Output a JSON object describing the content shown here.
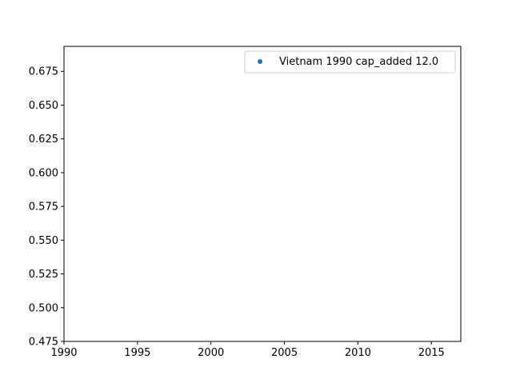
{
  "chart_data": {
    "type": "scatter",
    "title": "",
    "xlabel": "",
    "ylabel": "",
    "xlim": [
      1990,
      2017
    ],
    "ylim": [
      0.475,
      0.6935
    ],
    "x_ticks": [
      1990,
      1995,
      2000,
      2005,
      2010,
      2015
    ],
    "x_tick_labels": [
      "1990",
      "1995",
      "2000",
      "2005",
      "2010",
      "2015"
    ],
    "y_ticks": [
      0.475,
      0.5,
      0.525,
      0.55,
      0.575,
      0.6,
      0.625,
      0.65,
      0.675
    ],
    "y_tick_labels": [
      "0.475",
      "0.500",
      "0.525",
      "0.550",
      "0.575",
      "0.600",
      "0.625",
      "0.650",
      "0.675"
    ],
    "grid": false,
    "legend_position": "top-right",
    "series": [
      {
        "name": "Vietnam 1990 cap_added 12.0",
        "color": "#1f77b4",
        "marker": "circle",
        "points": []
      }
    ]
  }
}
